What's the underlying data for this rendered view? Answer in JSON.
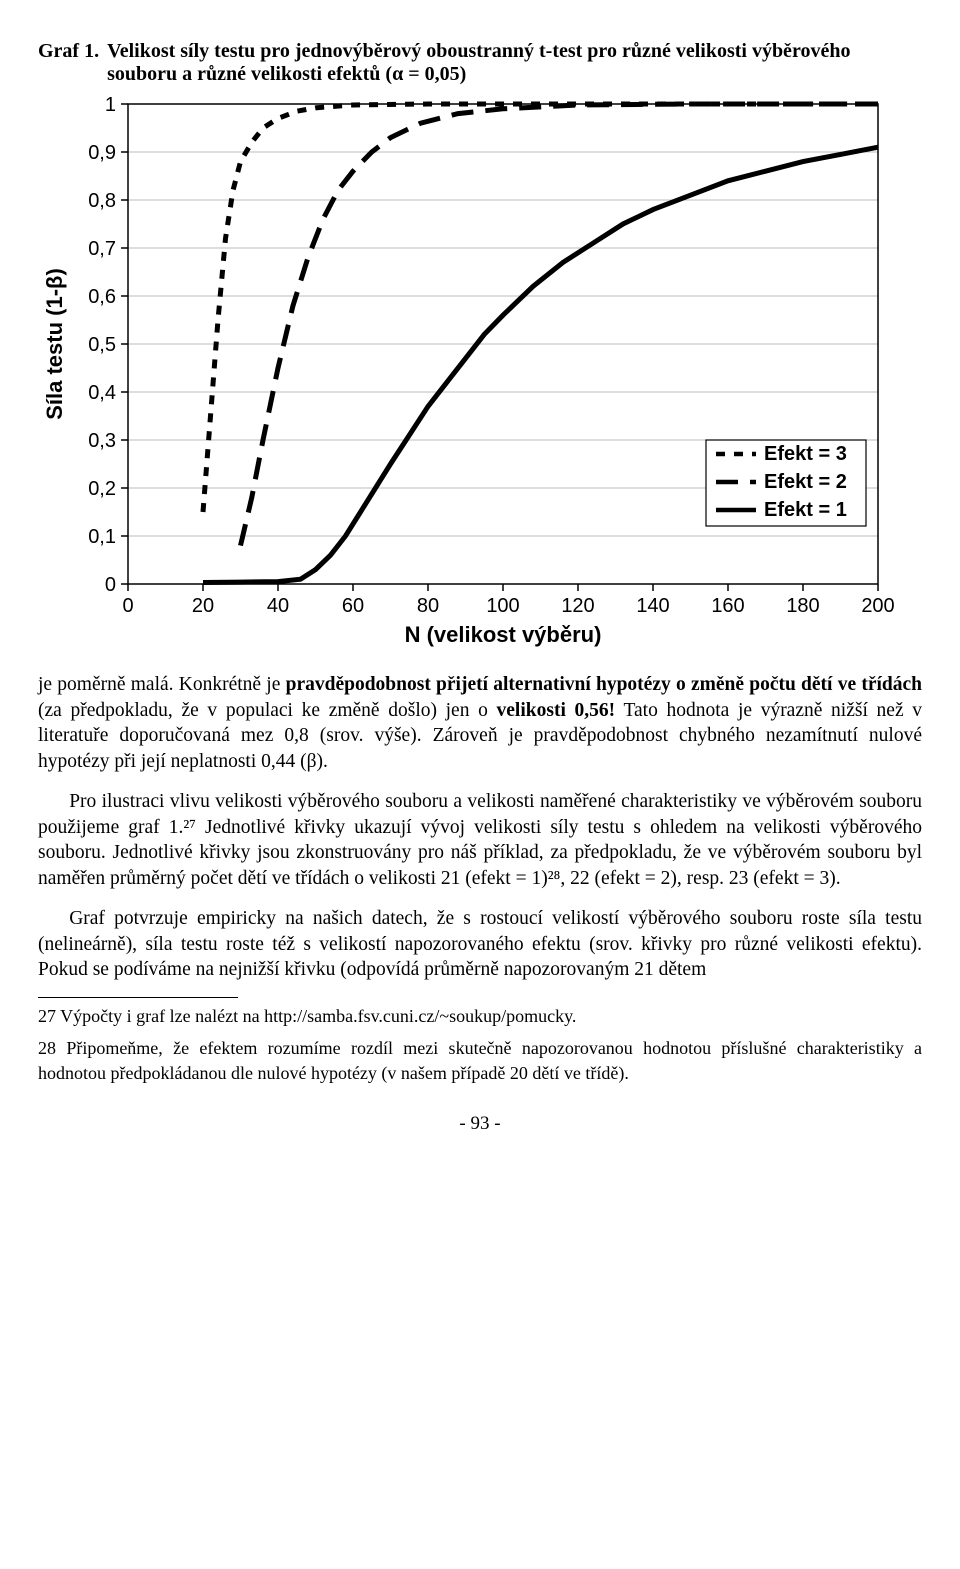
{
  "graf": {
    "label": "Graf 1.",
    "title": "Velikost síly testu pro jednovýběrový oboustranný t-test pro různé velikosti výběrového souboru a různé velikosti efektů (α = 0,05)"
  },
  "chart": {
    "type": "line",
    "background_color": "#ffffff",
    "axis_color": "#000000",
    "gridline_color": "#7f7f7f",
    "xlabel": "N (velikost výběru)",
    "ylabel": "Síla testu (1-β)",
    "xlim": [
      0,
      200
    ],
    "ylim": [
      0,
      1
    ],
    "xticks": [
      0,
      20,
      40,
      60,
      80,
      100,
      120,
      140,
      160,
      180,
      200
    ],
    "yticks": [
      "0",
      "0,1",
      "0,2",
      "0,3",
      "0,4",
      "0,5",
      "0,6",
      "0,7",
      "0,8",
      "0,9",
      "1"
    ],
    "ytick_vals": [
      0,
      0.1,
      0.2,
      0.3,
      0.4,
      0.5,
      0.6,
      0.7,
      0.8,
      0.9,
      1.0
    ],
    "tick_fontsize": 20,
    "label_fontsize": 22,
    "legend_fontsize": 20,
    "line_width_thick": 5,
    "line_width_med": 3.5,
    "series": [
      {
        "name": "Efekt = 3",
        "color": "#000000",
        "style": "short-dash",
        "dash": "9,9",
        "width": 5,
        "points": [
          [
            20,
            0.15
          ],
          [
            22,
            0.35
          ],
          [
            24,
            0.55
          ],
          [
            26,
            0.72
          ],
          [
            28,
            0.82
          ],
          [
            30,
            0.88
          ],
          [
            33,
            0.92
          ],
          [
            36,
            0.95
          ],
          [
            40,
            0.97
          ],
          [
            45,
            0.985
          ],
          [
            50,
            0.992
          ],
          [
            60,
            0.998
          ],
          [
            80,
            1.0
          ],
          [
            120,
            1.0
          ],
          [
            200,
            1.0
          ]
        ]
      },
      {
        "name": "Efekt = 2",
        "color": "#000000",
        "style": "long-dash",
        "dash": "22,12",
        "width": 5,
        "points": [
          [
            30,
            0.08
          ],
          [
            33,
            0.18
          ],
          [
            36,
            0.3
          ],
          [
            40,
            0.45
          ],
          [
            44,
            0.58
          ],
          [
            48,
            0.68
          ],
          [
            52,
            0.76
          ],
          [
            56,
            0.82
          ],
          [
            60,
            0.86
          ],
          [
            65,
            0.9
          ],
          [
            70,
            0.93
          ],
          [
            78,
            0.96
          ],
          [
            88,
            0.98
          ],
          [
            100,
            0.99
          ],
          [
            120,
            0.998
          ],
          [
            150,
            1.0
          ],
          [
            200,
            1.0
          ]
        ]
      },
      {
        "name": "Efekt = 1",
        "color": "#000000",
        "style": "solid",
        "dash": "",
        "width": 5,
        "points": [
          [
            20,
            0.003
          ],
          [
            30,
            0.004
          ],
          [
            40,
            0.005
          ],
          [
            46,
            0.01
          ],
          [
            50,
            0.03
          ],
          [
            54,
            0.06
          ],
          [
            58,
            0.1
          ],
          [
            62,
            0.15
          ],
          [
            66,
            0.2
          ],
          [
            70,
            0.25
          ],
          [
            75,
            0.31
          ],
          [
            80,
            0.37
          ],
          [
            85,
            0.42
          ],
          [
            90,
            0.47
          ],
          [
            95,
            0.52
          ],
          [
            100,
            0.56
          ],
          [
            108,
            0.62
          ],
          [
            116,
            0.67
          ],
          [
            124,
            0.71
          ],
          [
            132,
            0.75
          ],
          [
            140,
            0.78
          ],
          [
            150,
            0.81
          ],
          [
            160,
            0.84
          ],
          [
            170,
            0.86
          ],
          [
            180,
            0.88
          ],
          [
            190,
            0.895
          ],
          [
            200,
            0.91
          ]
        ]
      }
    ],
    "legend": {
      "items": [
        "Efekt = 3",
        "Efekt = 2",
        "Efekt = 1"
      ],
      "border_color": "#000000",
      "bg": "#ffffff"
    }
  },
  "para1": {
    "t1": "je poměrně malá. Konkrétně je ",
    "b1": "pravděpodobnost přijetí alternativní hypotézy o změně počtu dětí ve třídách",
    "t2": " (za předpokladu, že v populaci ke změně došlo) jen o ",
    "b2": "velikosti 0,56!",
    "t3": " Tato hodnota je výrazně nižší než v literatuře doporučovaná mez 0,8 (srov. výše). Zároveň je pravděpodobnost chybného nezamítnutí nulové hypotézy při její neplatnosti 0,44 (β)."
  },
  "para2": "Pro ilustraci vlivu velikosti výběrového souboru a velikosti naměřené charakteristiky ve výběrovém souboru použijeme graf 1.²⁷ Jednotlivé křivky ukazují vývoj velikosti síly testu s ohledem na velikosti výběrového souboru. Jednotlivé křivky jsou zkonstruovány pro náš příklad, za předpokladu, že ve výběrovém souboru byl naměřen průměrný počet dětí ve třídách o velikosti 21 (efekt = 1)²⁸, 22 (efekt = 2), resp. 23 (efekt = 3).",
  "para3": "Graf potvrzuje empiricky na našich datech, že s rostoucí velikostí výběrového souboru roste síla testu (nelineárně), síla testu roste též s velikostí napozorovaného efektu (srov. křivky pro různé velikosti efektu). Pokud se podíváme na nejnižší křivku (odpovídá průměrně napozorovaným 21 dětem",
  "fn27": "27  Výpočty i graf lze nalézt na http://samba.fsv.cuni.cz/~soukup/pomucky.",
  "fn28": "28  Připomeňme, že efektem rozumíme rozdíl mezi skutečně napozorovanou hodnotou příslušné charakteristiky a hodnotou předpokládanou dle nulové hypotézy (v našem případě 20 dětí ve třídě).",
  "page": "- 93 -"
}
